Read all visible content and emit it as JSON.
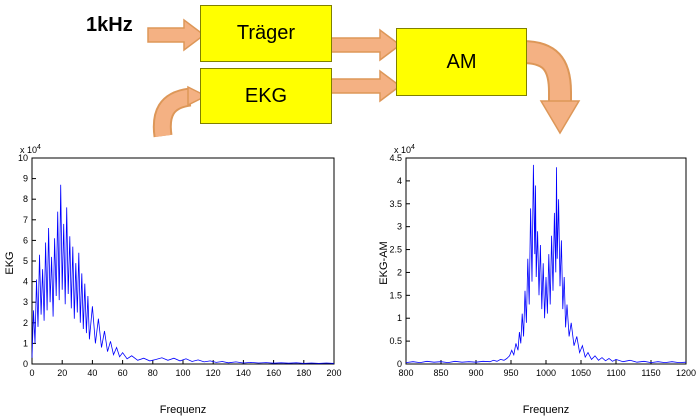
{
  "diagram": {
    "input_label": "1kHz",
    "blocks": {
      "traeger": "Träger",
      "ekg": "EKG",
      "am": "AM"
    },
    "colors": {
      "box_fill": "#ffff00",
      "box_border": "#808000",
      "arrow_fill": "#f4b183",
      "arrow_stroke": "#dd9758"
    }
  },
  "chart_data": [
    {
      "type": "line",
      "title": "",
      "xlabel": "Frequenz",
      "ylabel": "EKG",
      "exponent": {
        "base": "x 10",
        "power": "4"
      },
      "xlim": [
        0,
        200
      ],
      "ylim": [
        0,
        10
      ],
      "xticks": [
        0,
        20,
        40,
        60,
        80,
        100,
        120,
        140,
        160,
        180,
        200
      ],
      "yticks": [
        0,
        1,
        2,
        3,
        4,
        5,
        6,
        7,
        8,
        9,
        10
      ],
      "grid": false,
      "line_color": "#0000ff",
      "x": [
        0,
        1,
        2,
        3,
        4,
        5,
        6,
        7,
        8,
        9,
        10,
        11,
        12,
        13,
        14,
        15,
        16,
        17,
        18,
        19,
        20,
        21,
        22,
        23,
        24,
        25,
        26,
        27,
        28,
        29,
        30,
        31,
        32,
        33,
        34,
        35,
        36,
        37,
        38,
        40,
        42,
        44,
        46,
        48,
        50,
        52,
        54,
        56,
        58,
        60,
        63,
        66,
        70,
        74,
        78,
        82,
        86,
        90,
        94,
        98,
        102,
        106,
        110,
        114,
        118,
        122,
        126,
        130,
        135,
        140,
        145,
        150,
        155,
        160,
        165,
        170,
        175,
        180,
        185,
        190,
        195,
        200
      ],
      "y": [
        0.3,
        2.6,
        1.0,
        4.1,
        1.8,
        5.3,
        2.4,
        4.6,
        2.1,
        5.9,
        2.6,
        6.6,
        3.0,
        5.2,
        2.3,
        6.1,
        3.3,
        7.4,
        3.1,
        8.7,
        3.6,
        6.8,
        2.9,
        7.6,
        3.4,
        6.2,
        2.7,
        5.7,
        2.2,
        4.9,
        2.5,
        5.4,
        2.0,
        4.4,
        1.7,
        3.9,
        1.5,
        3.3,
        1.2,
        2.8,
        1.0,
        2.2,
        0.8,
        1.6,
        0.6,
        1.1,
        0.45,
        0.8,
        0.35,
        0.55,
        0.25,
        0.4,
        0.18,
        0.28,
        0.15,
        0.22,
        0.3,
        0.18,
        0.28,
        0.15,
        0.25,
        0.12,
        0.2,
        0.1,
        0.15,
        0.08,
        0.12,
        0.06,
        0.1,
        0.05,
        0.08,
        0.05,
        0.07,
        0.04,
        0.06,
        0.04,
        0.06,
        0.03,
        0.05,
        0.03,
        0.05,
        0.03
      ]
    },
    {
      "type": "line",
      "title": "",
      "xlabel": "Frequenz",
      "ylabel": "EKG-AM",
      "exponent": {
        "base": "x 10",
        "power": "4"
      },
      "xlim": [
        800,
        1200
      ],
      "ylim": [
        0,
        4.5
      ],
      "xticks": [
        800,
        850,
        900,
        950,
        1000,
        1050,
        1100,
        1150,
        1200
      ],
      "yticks": [
        0,
        0.5,
        1,
        1.5,
        2,
        2.5,
        3,
        3.5,
        4,
        4.5
      ],
      "grid": false,
      "line_color": "#0000ff",
      "x": [
        800,
        810,
        820,
        830,
        840,
        850,
        860,
        870,
        880,
        890,
        900,
        910,
        920,
        925,
        930,
        935,
        940,
        944,
        948,
        951,
        954,
        957,
        960,
        962,
        964,
        966,
        968,
        970,
        972,
        974,
        976,
        978,
        980,
        982,
        984,
        985,
        986,
        988,
        990,
        992,
        994,
        996,
        998,
        1000,
        1002,
        1004,
        1006,
        1008,
        1010,
        1012,
        1014,
        1015,
        1016,
        1018,
        1020,
        1022,
        1024,
        1026,
        1028,
        1030,
        1033,
        1036,
        1040,
        1044,
        1048,
        1052,
        1056,
        1060,
        1065,
        1070,
        1075,
        1080,
        1085,
        1090,
        1095,
        1100,
        1110,
        1120,
        1130,
        1140,
        1150,
        1160,
        1170,
        1180,
        1190,
        1200
      ],
      "y": [
        0.03,
        0.05,
        0.03,
        0.06,
        0.04,
        0.05,
        0.03,
        0.06,
        0.04,
        0.05,
        0.04,
        0.06,
        0.05,
        0.08,
        0.06,
        0.1,
        0.08,
        0.12,
        0.18,
        0.3,
        0.2,
        0.45,
        0.3,
        0.7,
        0.45,
        1.1,
        0.6,
        1.6,
        0.9,
        2.3,
        1.3,
        3.4,
        1.8,
        4.35,
        2.4,
        3.9,
        1.9,
        2.9,
        1.5,
        2.6,
        1.2,
        2.2,
        1.0,
        1.9,
        1.1,
        2.4,
        1.3,
        2.8,
        1.6,
        3.3,
        2.0,
        4.3,
        2.3,
        3.6,
        1.7,
        2.7,
        1.2,
        1.9,
        0.8,
        1.3,
        0.6,
        0.9,
        0.4,
        0.6,
        0.25,
        0.4,
        0.15,
        0.25,
        0.1,
        0.18,
        0.08,
        0.14,
        0.07,
        0.12,
        0.06,
        0.1,
        0.05,
        0.08,
        0.04,
        0.06,
        0.03,
        0.05,
        0.03,
        0.05,
        0.03,
        0.04
      ]
    }
  ]
}
